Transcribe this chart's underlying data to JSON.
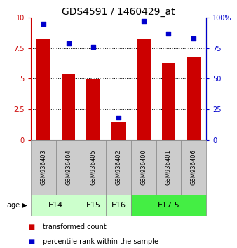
{
  "title": "GDS4591 / 1460429_at",
  "samples": [
    "GSM936403",
    "GSM936404",
    "GSM936405",
    "GSM936402",
    "GSM936400",
    "GSM936401",
    "GSM936406"
  ],
  "bar_values": [
    8.3,
    5.4,
    4.95,
    1.5,
    8.3,
    6.3,
    6.8
  ],
  "percentile_values": [
    95,
    79,
    76,
    18,
    97,
    87,
    83
  ],
  "bar_color": "#cc0000",
  "dot_color": "#0000cc",
  "ylim_left": [
    0,
    10
  ],
  "ylim_right": [
    0,
    100
  ],
  "yticks_left": [
    0,
    2.5,
    5,
    7.5,
    10
  ],
  "ytick_labels_left": [
    "0",
    "2.5",
    "5",
    "7.5",
    "10"
  ],
  "yticks_right": [
    0,
    25,
    50,
    75,
    100
  ],
  "ytick_labels_right": [
    "0",
    "25",
    "50",
    "75",
    "100%"
  ],
  "age_groups": [
    {
      "label": "E14",
      "indices": [
        0,
        1
      ],
      "color": "#ccffcc"
    },
    {
      "label": "E15",
      "indices": [
        2
      ],
      "color": "#ccffcc"
    },
    {
      "label": "E16",
      "indices": [
        3
      ],
      "color": "#ccffcc"
    },
    {
      "label": "E17.5",
      "indices": [
        4,
        5,
        6
      ],
      "color": "#44ee44"
    }
  ],
  "grid_yticks": [
    2.5,
    5.0,
    7.5
  ],
  "sample_bg_color": "#cccccc",
  "sample_border_color": "#888888",
  "age_border_color": "#888888",
  "title_fontsize": 10,
  "tick_fontsize": 7,
  "sample_fontsize": 6,
  "age_fontsize": 8,
  "legend_fontsize": 7
}
